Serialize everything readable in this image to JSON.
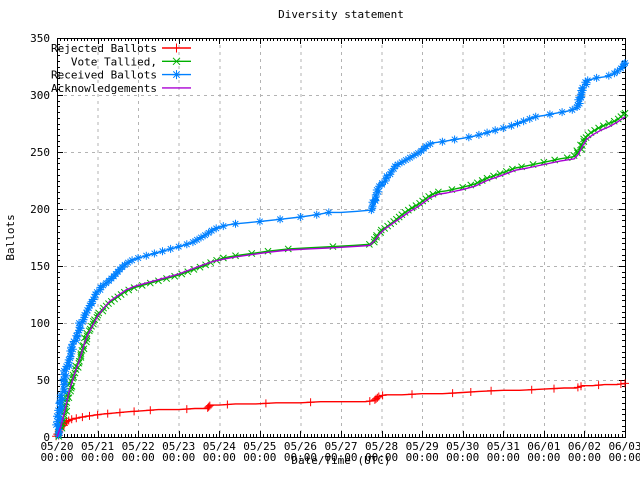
{
  "chart_data": {
    "type": "line",
    "title": "Diversity statement",
    "xlabel": "Date/Time (UTC)",
    "ylabel": "Ballots",
    "ylim": [
      0,
      350
    ],
    "xlim_days": 14,
    "y_major_step": 50,
    "y_minor_step": 5,
    "x_minor_per_day": 12,
    "grid": true,
    "legend_position": "top-left",
    "y_tick_labels": [
      "0",
      "50",
      "100",
      "150",
      "200",
      "250",
      "300",
      "350"
    ],
    "x_tick_time": "00:00",
    "x_tick_dates": [
      "05/20",
      "05/21",
      "05/22",
      "05/23",
      "05/24",
      "05/25",
      "05/26",
      "05/27",
      "05/28",
      "05/29",
      "05/30",
      "05/31",
      "06/01",
      "06/02",
      "06/03"
    ],
    "series": [
      {
        "name": "Rejected Ballots",
        "color": "#ff0000",
        "marker": "plus",
        "marker_step": 1,
        "points": [
          [
            0,
            0
          ],
          [
            0.04,
            3
          ],
          [
            0.08,
            7
          ],
          [
            0.15,
            11
          ],
          [
            0.25,
            14
          ],
          [
            0.4,
            16
          ],
          [
            0.55,
            17
          ],
          [
            0.7,
            18
          ],
          [
            0.9,
            19
          ],
          [
            1.1,
            20
          ],
          [
            1.4,
            21
          ],
          [
            1.7,
            22
          ],
          [
            2.1,
            23
          ],
          [
            2.5,
            24
          ],
          [
            3.0,
            24
          ],
          [
            3.4,
            25
          ],
          [
            3.7,
            25
          ],
          [
            3.78,
            28
          ],
          [
            4.0,
            28
          ],
          [
            4.4,
            29
          ],
          [
            4.9,
            29
          ],
          [
            5.4,
            30
          ],
          [
            6.0,
            30
          ],
          [
            6.5,
            31
          ],
          [
            7.0,
            31
          ],
          [
            7.6,
            31
          ],
          [
            7.82,
            32
          ],
          [
            7.88,
            34
          ],
          [
            7.95,
            36
          ],
          [
            8.1,
            37
          ],
          [
            8.5,
            37
          ],
          [
            9.0,
            38
          ],
          [
            9.5,
            38
          ],
          [
            10.0,
            39
          ],
          [
            10.4,
            40
          ],
          [
            11.0,
            41
          ],
          [
            11.4,
            41
          ],
          [
            12.0,
            42
          ],
          [
            12.5,
            43
          ],
          [
            12.8,
            43
          ],
          [
            12.88,
            44
          ],
          [
            12.95,
            45
          ],
          [
            13.2,
            45
          ],
          [
            13.5,
            46
          ],
          [
            13.8,
            46
          ],
          [
            14.0,
            47
          ]
        ]
      },
      {
        "name": "Vote Tallied,",
        "color": "#00b000",
        "marker": "cross",
        "marker_step": 2,
        "points": [
          [
            0,
            0
          ],
          [
            0.07,
            4
          ],
          [
            0.12,
            10
          ],
          [
            0.2,
            22
          ],
          [
            0.3,
            40
          ],
          [
            0.42,
            55
          ],
          [
            0.55,
            68
          ],
          [
            0.65,
            80
          ],
          [
            0.75,
            90
          ],
          [
            0.88,
            99
          ],
          [
            1.0,
            107
          ],
          [
            1.15,
            113
          ],
          [
            1.3,
            118
          ],
          [
            1.5,
            123
          ],
          [
            1.7,
            128
          ],
          [
            1.9,
            131
          ],
          [
            2.1,
            133
          ],
          [
            2.4,
            136
          ],
          [
            2.7,
            139
          ],
          [
            3.0,
            142
          ],
          [
            3.3,
            146
          ],
          [
            3.6,
            150
          ],
          [
            3.85,
            154
          ],
          [
            4.1,
            157
          ],
          [
            4.4,
            159
          ],
          [
            4.8,
            161
          ],
          [
            5.2,
            163
          ],
          [
            5.7,
            165
          ],
          [
            6.2,
            166
          ],
          [
            6.8,
            167
          ],
          [
            7.3,
            168
          ],
          [
            7.7,
            169
          ],
          [
            7.82,
            171
          ],
          [
            7.9,
            177
          ],
          [
            8.0,
            181
          ],
          [
            8.15,
            185
          ],
          [
            8.3,
            189
          ],
          [
            8.5,
            195
          ],
          [
            8.7,
            200
          ],
          [
            8.9,
            204
          ],
          [
            9.05,
            208
          ],
          [
            9.2,
            212
          ],
          [
            9.4,
            215
          ],
          [
            9.6,
            216
          ],
          [
            10.0,
            219
          ],
          [
            10.3,
            222
          ],
          [
            10.6,
            227
          ],
          [
            11.0,
            232
          ],
          [
            11.3,
            236
          ],
          [
            11.6,
            238
          ],
          [
            12.0,
            241
          ],
          [
            12.4,
            244
          ],
          [
            12.75,
            246
          ],
          [
            12.85,
            250
          ],
          [
            12.95,
            258
          ],
          [
            13.05,
            264
          ],
          [
            13.2,
            268
          ],
          [
            13.4,
            272
          ],
          [
            13.6,
            275
          ],
          [
            13.8,
            278
          ],
          [
            14.0,
            284
          ]
        ]
      },
      {
        "name": "Received Ballots",
        "color": "#0080ff",
        "marker": "star",
        "marker_step": 2,
        "points": [
          [
            0,
            0
          ],
          [
            0.03,
            12
          ],
          [
            0.06,
            22
          ],
          [
            0.1,
            33
          ],
          [
            0.15,
            44
          ],
          [
            0.22,
            56
          ],
          [
            0.3,
            68
          ],
          [
            0.4,
            80
          ],
          [
            0.5,
            91
          ],
          [
            0.6,
            100
          ],
          [
            0.72,
            109
          ],
          [
            0.85,
            118
          ],
          [
            1.0,
            127
          ],
          [
            1.1,
            132
          ],
          [
            1.25,
            136
          ],
          [
            1.4,
            141
          ],
          [
            1.55,
            147
          ],
          [
            1.7,
            152
          ],
          [
            1.85,
            155
          ],
          [
            2.0,
            157
          ],
          [
            2.3,
            160
          ],
          [
            2.6,
            163
          ],
          [
            2.9,
            166
          ],
          [
            3.1,
            168
          ],
          [
            3.3,
            170
          ],
          [
            3.5,
            174
          ],
          [
            3.7,
            178
          ],
          [
            3.85,
            182
          ],
          [
            4.0,
            184
          ],
          [
            4.2,
            186
          ],
          [
            4.4,
            187
          ],
          [
            4.7,
            188
          ],
          [
            5.0,
            189
          ],
          [
            5.5,
            191
          ],
          [
            6.0,
            193
          ],
          [
            6.4,
            195
          ],
          [
            6.7,
            197
          ],
          [
            7.0,
            197
          ],
          [
            7.4,
            198
          ],
          [
            7.75,
            199
          ],
          [
            7.82,
            206
          ],
          [
            7.88,
            213
          ],
          [
            7.95,
            219
          ],
          [
            8.05,
            224
          ],
          [
            8.15,
            229
          ],
          [
            8.25,
            234
          ],
          [
            8.35,
            238
          ],
          [
            8.55,
            242
          ],
          [
            8.75,
            246
          ],
          [
            8.95,
            250
          ],
          [
            9.1,
            255
          ],
          [
            9.25,
            258
          ],
          [
            9.5,
            259
          ],
          [
            9.8,
            261
          ],
          [
            10.0,
            262
          ],
          [
            10.3,
            264
          ],
          [
            10.6,
            267
          ],
          [
            10.9,
            270
          ],
          [
            11.2,
            273
          ],
          [
            11.5,
            277
          ],
          [
            11.8,
            281
          ],
          [
            12.0,
            282
          ],
          [
            12.3,
            284
          ],
          [
            12.6,
            286
          ],
          [
            12.8,
            288
          ],
          [
            12.87,
            293
          ],
          [
            12.93,
            300
          ],
          [
            13.0,
            309
          ],
          [
            13.1,
            313
          ],
          [
            13.3,
            315
          ],
          [
            13.5,
            316
          ],
          [
            13.7,
            318
          ],
          [
            13.85,
            322
          ],
          [
            13.95,
            326
          ],
          [
            14.0,
            328
          ]
        ]
      },
      {
        "name": "Acknowledgements",
        "color": "#aa00d4",
        "marker": "none",
        "marker_step": 0,
        "points": [
          [
            0,
            0
          ],
          [
            0.1,
            10
          ],
          [
            0.2,
            24
          ],
          [
            0.3,
            40
          ],
          [
            0.42,
            54
          ],
          [
            0.55,
            67
          ],
          [
            0.65,
            79
          ],
          [
            0.75,
            89
          ],
          [
            0.88,
            98
          ],
          [
            1.0,
            106
          ],
          [
            1.15,
            113
          ],
          [
            1.3,
            119
          ],
          [
            1.5,
            124
          ],
          [
            1.7,
            129
          ],
          [
            1.9,
            132
          ],
          [
            2.1,
            134
          ],
          [
            2.4,
            137
          ],
          [
            2.7,
            140
          ],
          [
            3.0,
            143
          ],
          [
            3.3,
            147
          ],
          [
            3.6,
            151
          ],
          [
            3.85,
            154
          ],
          [
            4.1,
            156
          ],
          [
            4.4,
            158
          ],
          [
            4.8,
            160
          ],
          [
            5.2,
            162
          ],
          [
            5.7,
            164
          ],
          [
            6.2,
            165
          ],
          [
            6.8,
            166
          ],
          [
            7.3,
            167
          ],
          [
            7.7,
            168
          ],
          [
            7.85,
            173
          ],
          [
            7.95,
            178
          ],
          [
            8.1,
            183
          ],
          [
            8.3,
            188
          ],
          [
            8.5,
            193
          ],
          [
            8.7,
            198
          ],
          [
            8.9,
            202
          ],
          [
            9.05,
            206
          ],
          [
            9.2,
            210
          ],
          [
            9.4,
            213
          ],
          [
            9.6,
            214
          ],
          [
            10.0,
            217
          ],
          [
            10.3,
            220
          ],
          [
            10.6,
            225
          ],
          [
            11.0,
            230
          ],
          [
            11.3,
            234
          ],
          [
            11.6,
            236
          ],
          [
            12.0,
            239
          ],
          [
            12.4,
            242
          ],
          [
            12.75,
            244
          ],
          [
            12.85,
            248
          ],
          [
            12.95,
            255
          ],
          [
            13.05,
            261
          ],
          [
            13.2,
            265
          ],
          [
            13.4,
            269
          ],
          [
            13.6,
            272
          ],
          [
            13.8,
            276
          ],
          [
            14.0,
            281
          ]
        ]
      }
    ],
    "colors": {
      "border": "#000000",
      "grid": "#b3b3b3",
      "background": "#ffffff",
      "text": "#000000"
    }
  }
}
